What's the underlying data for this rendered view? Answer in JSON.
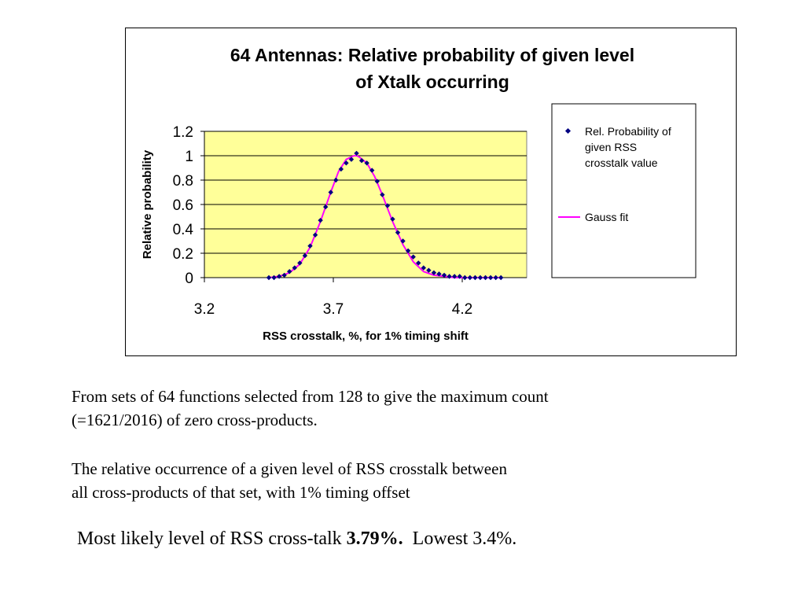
{
  "chart_data": {
    "type": "scatter",
    "title_lines": [
      "64 Antennas: Relative probability of given level",
      "of Xtalk occurring"
    ],
    "xlabel": "RSS crosstalk, %, for 1% timing shift",
    "ylabel": "Relative probability",
    "xlim": [
      3.2,
      4.45
    ],
    "ylim": [
      0,
      1.2
    ],
    "x_ticks": [
      "3.2",
      "3.7",
      "4.2"
    ],
    "y_ticks": [
      "0",
      "0.2",
      "0.4",
      "0.6",
      "0.8",
      "1",
      "1.2"
    ],
    "grid": true,
    "legend_placement": "right",
    "plot_bg": "#FFFF99",
    "series": [
      {
        "name": "Rel. Probability of given RSS crosstalk value",
        "kind": "markers",
        "color": "#000080",
        "x": [
          3.45,
          3.47,
          3.49,
          3.51,
          3.53,
          3.55,
          3.57,
          3.59,
          3.61,
          3.63,
          3.65,
          3.67,
          3.69,
          3.71,
          3.73,
          3.75,
          3.77,
          3.79,
          3.81,
          3.83,
          3.85,
          3.87,
          3.89,
          3.91,
          3.93,
          3.95,
          3.97,
          3.99,
          4.01,
          4.03,
          4.05,
          4.07,
          4.09,
          4.11,
          4.13,
          4.15,
          4.17,
          4.19,
          4.21,
          4.23,
          4.25,
          4.27,
          4.29,
          4.31,
          4.33,
          4.35
        ],
        "y": [
          0.0,
          0.0,
          0.01,
          0.02,
          0.05,
          0.08,
          0.12,
          0.18,
          0.26,
          0.35,
          0.47,
          0.58,
          0.7,
          0.8,
          0.89,
          0.94,
          0.97,
          1.02,
          0.96,
          0.94,
          0.88,
          0.79,
          0.68,
          0.59,
          0.48,
          0.37,
          0.3,
          0.22,
          0.17,
          0.12,
          0.08,
          0.06,
          0.04,
          0.03,
          0.02,
          0.01,
          0.01,
          0.01,
          0.0,
          0.0,
          0.0,
          0.0,
          0.0,
          0.0,
          0.0,
          0.0
        ]
      },
      {
        "name": "Gauss fit",
        "kind": "line",
        "color": "#FF00FF",
        "x": [
          3.45,
          3.49,
          3.53,
          3.57,
          3.61,
          3.65,
          3.69,
          3.72,
          3.75,
          3.78,
          3.79,
          3.8,
          3.83,
          3.86,
          3.89,
          3.93,
          3.97,
          4.01,
          4.05,
          4.09,
          4.13,
          4.17,
          4.21,
          4.25,
          4.29,
          4.33,
          4.35
        ],
        "y": [
          0.0,
          0.01,
          0.04,
          0.11,
          0.25,
          0.46,
          0.7,
          0.87,
          0.97,
          1.0,
          1.0,
          0.99,
          0.94,
          0.83,
          0.68,
          0.46,
          0.27,
          0.13,
          0.05,
          0.02,
          0.01,
          0.0,
          0.0,
          0.0,
          0.0,
          0.0,
          0.0
        ]
      }
    ]
  },
  "text": {
    "para1_line1": "From sets of 64 functions selected from 128 to give the maximum count",
    "para1_line2": "(=1621/2016) of zero cross-products.",
    "para2_line1": "The relative occurrence of a given level of RSS crosstalk between",
    "para2_line2": "all cross-products of that set, with 1% timing offset",
    "summary_prefix": "Most likely level of RSS cross-talk ",
    "summary_bold": "3.79%.",
    "summary_suffix": "  Lowest 3.4%."
  }
}
